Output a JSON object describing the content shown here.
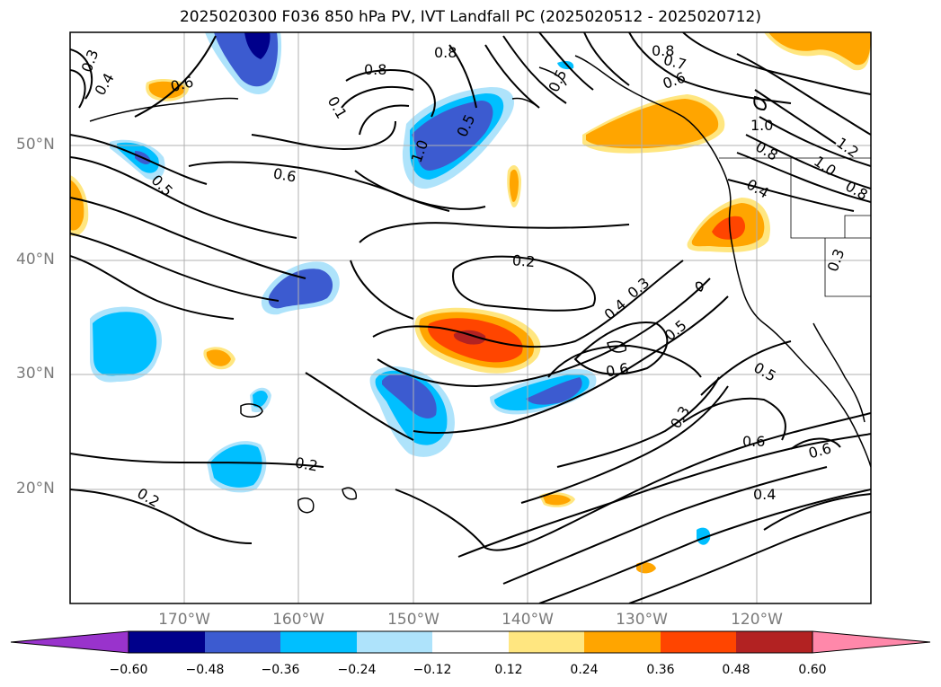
{
  "title": "2025020300 F036 850 hPa PV, IVT Landfall PC (2025020512 - 2025020712)",
  "lat_labels": [
    "50°N",
    "40°N",
    "30°N",
    "20°N"
  ],
  "lon_labels": [
    "170°W",
    "160°W",
    "150°W",
    "140°W",
    "130°W",
    "120°W"
  ],
  "colorbar": {
    "ticks": [
      "−0.60",
      "−0.48",
      "−0.36",
      "−0.24",
      "−0.12",
      "0.12",
      "0.24",
      "0.36",
      "0.48",
      "0.60"
    ],
    "colors": [
      "#9933cc",
      "#00008b",
      "#3c5bd0",
      "#00bfff",
      "#aee3fb",
      "#ffffff",
      "#ffe680",
      "#ffa500",
      "#ff4500",
      "#b22222",
      "#ff88aa"
    ]
  },
  "contour_labels": [
    "0.3",
    "0.4",
    "0.6",
    "0.1",
    "0.8",
    "0.8",
    "0.8",
    "0.7",
    "0.6",
    "0.5",
    "0.5",
    "1.0",
    "1.0",
    "0.5",
    "0.6",
    "0.8",
    "1.0",
    "1.2",
    "0.8",
    "0.4",
    "0.3",
    "0.2",
    "0.4",
    "0.3",
    "0.5",
    "0.6",
    "0.5",
    "0.3",
    "0.6",
    "0.6",
    "0.4",
    "0.2",
    "0.2"
  ]
}
